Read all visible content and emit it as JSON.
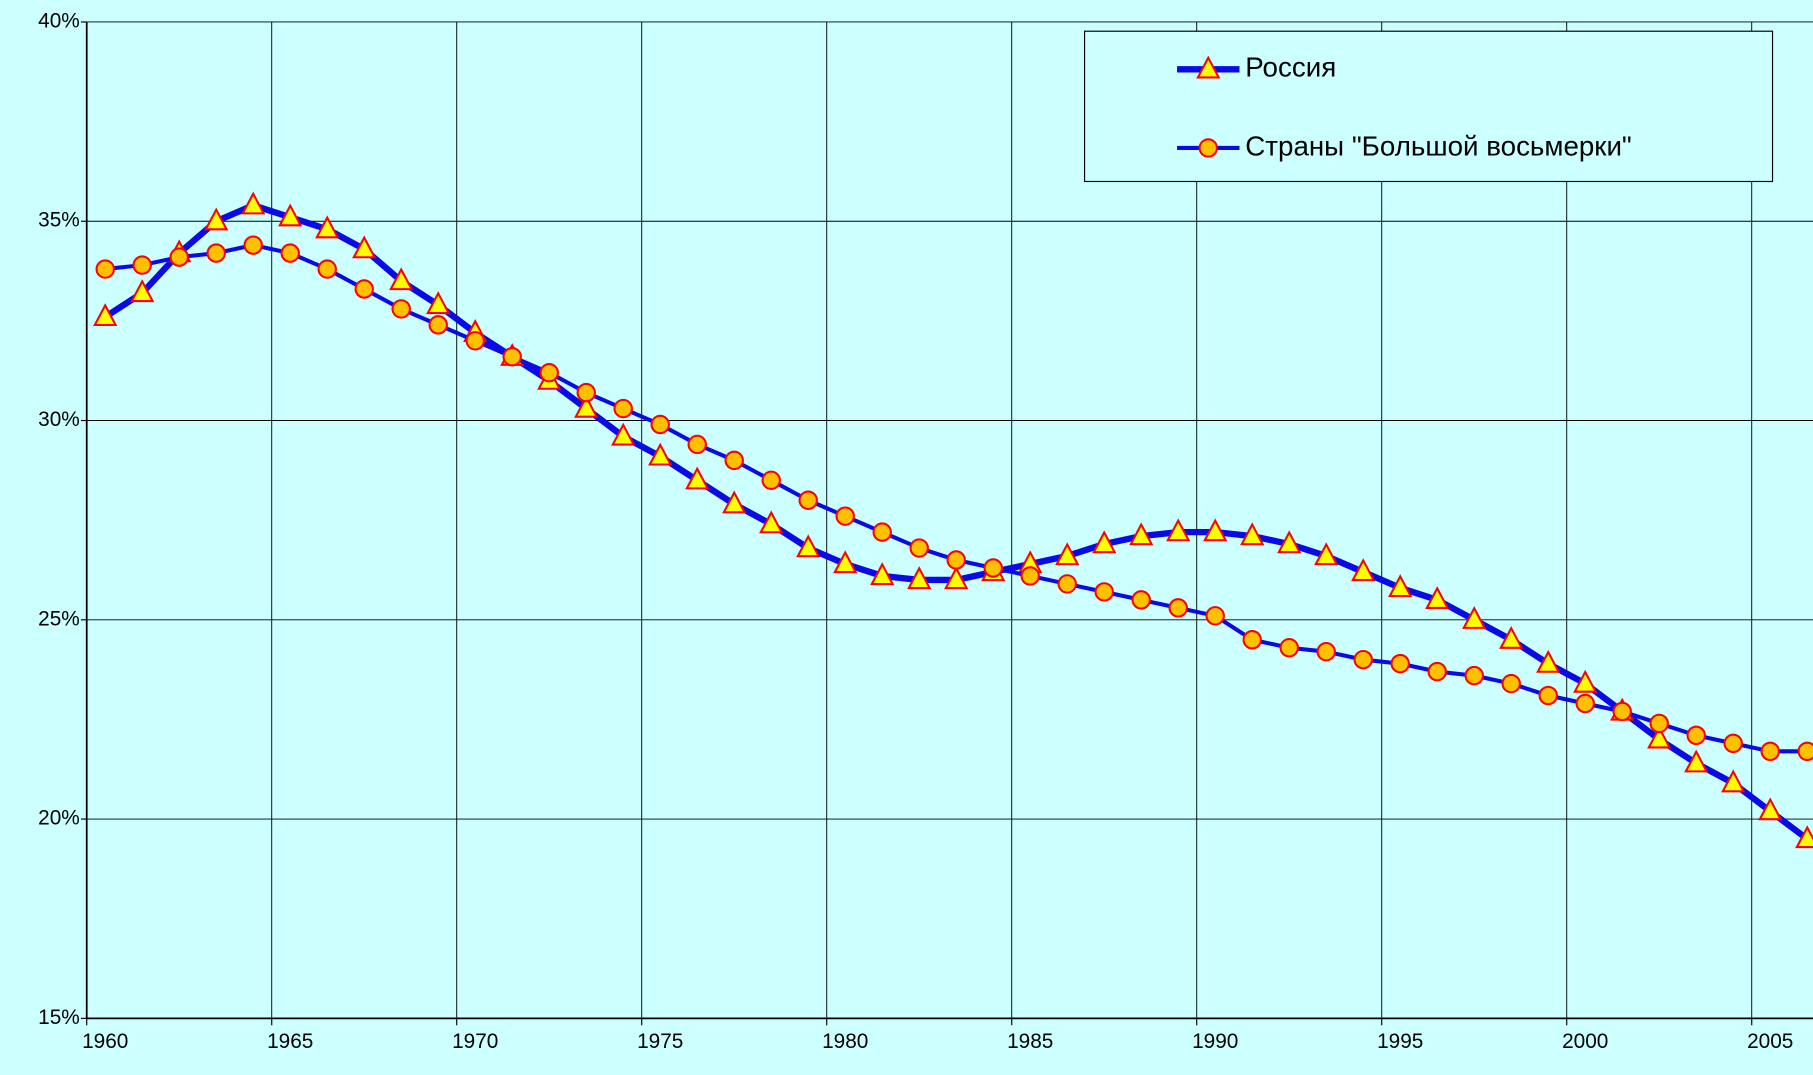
{
  "chart_data": {
    "type": "line",
    "categories": [
      "1960",
      null,
      null,
      null,
      null,
      "1965",
      null,
      null,
      null,
      null,
      "1970",
      null,
      null,
      null,
      null,
      "1975",
      null,
      null,
      null,
      null,
      "1980",
      null,
      null,
      null,
      null,
      "1985",
      null,
      null,
      null,
      null,
      "1990",
      null,
      null,
      null,
      null,
      "1995",
      null,
      null,
      null,
      null,
      "2000",
      null,
      null,
      null,
      null,
      "2005",
      null
    ],
    "series": [
      {
        "name": "Россия",
        "color": "#0a0ae6",
        "marker": "triangle",
        "marker_fill": "#ffff00",
        "marker_stroke": "#ff0000",
        "values": [
          32.6,
          33.2,
          34.2,
          35.0,
          35.4,
          35.1,
          34.8,
          34.3,
          33.5,
          32.9,
          32.2,
          31.6,
          31.0,
          30.3,
          29.6,
          29.1,
          28.5,
          27.9,
          27.4,
          26.8,
          26.4,
          26.1,
          26.0,
          26.0,
          26.2,
          26.4,
          26.6,
          26.9,
          27.1,
          27.2,
          27.2,
          27.1,
          26.9,
          26.6,
          26.2,
          25.8,
          25.5,
          25.0,
          24.5,
          23.9,
          23.4,
          22.7,
          22.0,
          21.4,
          20.9,
          20.2,
          19.5
        ]
      },
      {
        "name": "Страны \"Большой восьмерки\"",
        "color": "#0a0ae6",
        "marker": "circle",
        "marker_fill": "#ffc000",
        "marker_stroke": "#ff0000",
        "values": [
          33.8,
          33.9,
          34.1,
          34.2,
          34.4,
          34.2,
          33.8,
          33.3,
          32.8,
          32.4,
          32.0,
          31.6,
          31.2,
          30.7,
          30.3,
          29.9,
          29.4,
          29.0,
          28.5,
          28.0,
          27.6,
          27.2,
          26.8,
          26.5,
          26.3,
          26.1,
          25.9,
          25.7,
          25.5,
          25.3,
          25.1,
          24.5,
          24.3,
          24.2,
          24.0,
          23.9,
          23.7,
          23.6,
          23.4,
          23.1,
          22.9,
          22.7,
          22.4,
          22.1,
          21.9,
          21.7,
          21.7
        ]
      }
    ],
    "ylim": [
      15,
      40
    ],
    "yticks": [
      {
        "value": 15,
        "label": "15%"
      },
      {
        "value": 20,
        "label": "20%"
      },
      {
        "value": 25,
        "label": "25%"
      },
      {
        "value": 30,
        "label": "30%"
      },
      {
        "value": 35,
        "label": "35%"
      },
      {
        "value": 40,
        "label": "40%"
      }
    ],
    "grid": true,
    "legend": "upper right"
  }
}
